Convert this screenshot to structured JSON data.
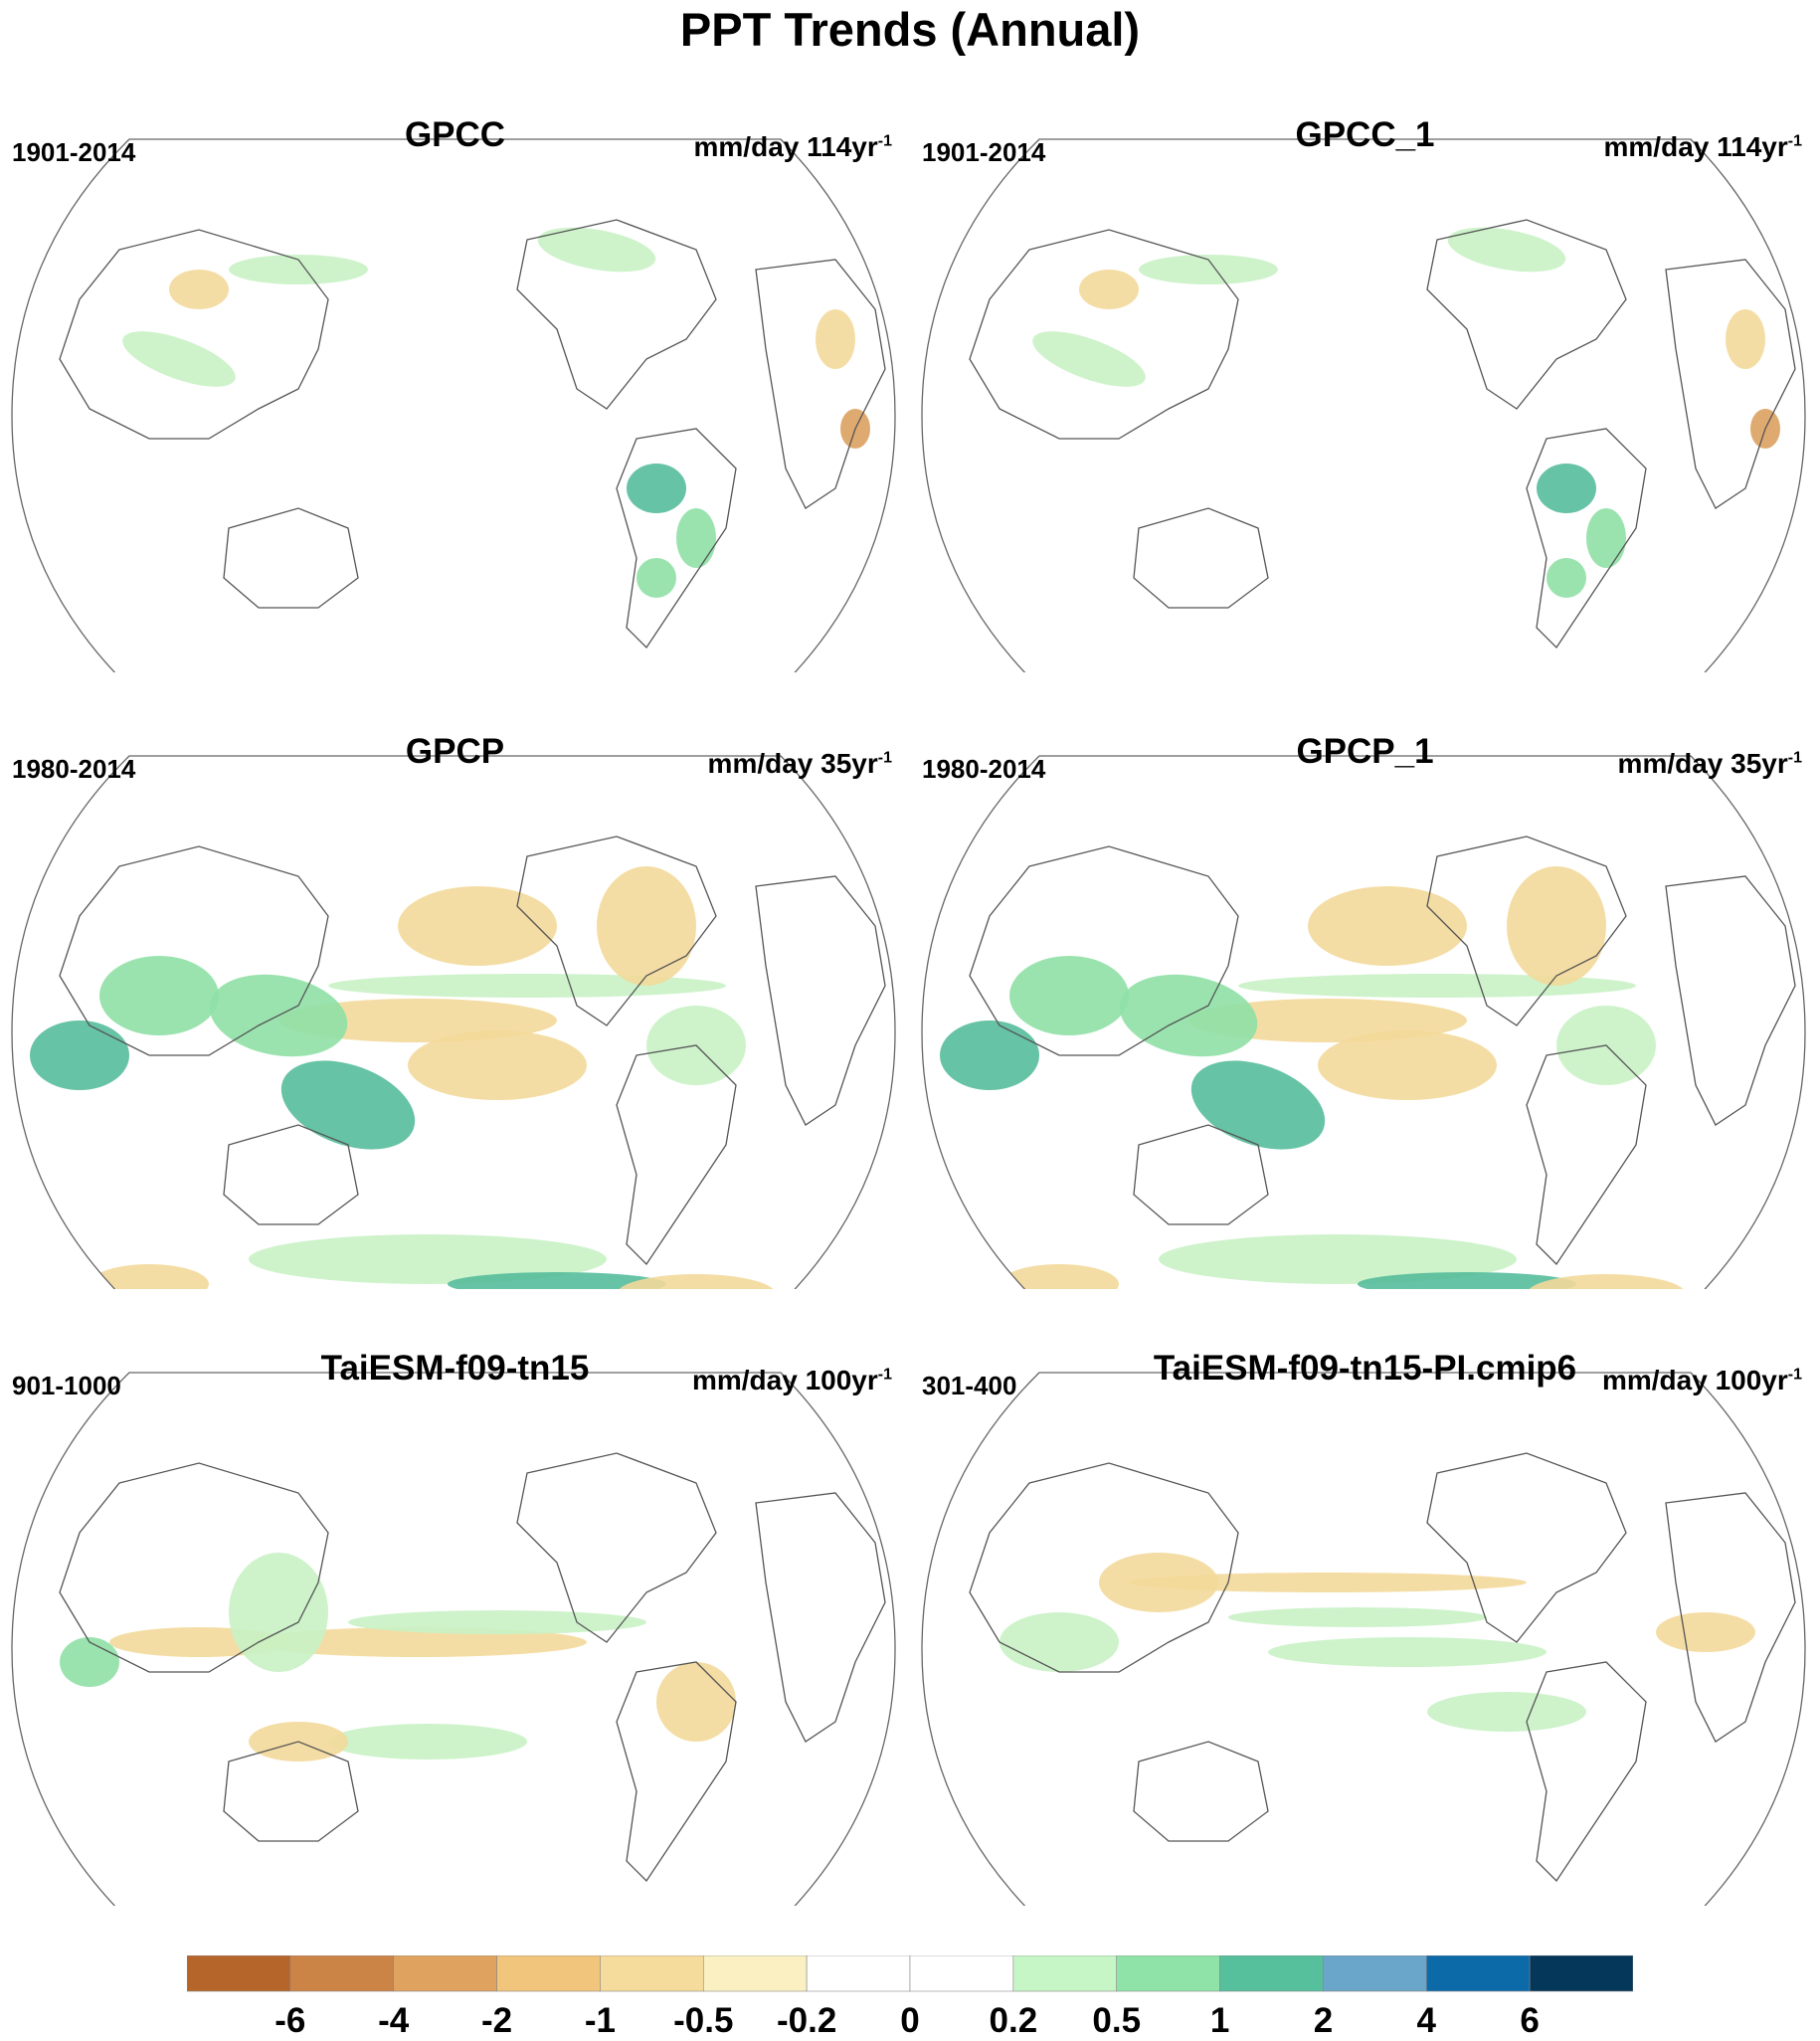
{
  "title": "PPT Trends (Annual)",
  "panels": [
    {
      "name": "GPCC",
      "period": "1901-2014",
      "units": "mm/day 114yr",
      "units_sup": "-1"
    },
    {
      "name": "GPCC_1",
      "period": "1901-2014",
      "units": "mm/day 114yr",
      "units_sup": "-1"
    },
    {
      "name": "GPCP",
      "period": "1980-2014",
      "units": "mm/day 35yr",
      "units_sup": "-1"
    },
    {
      "name": "GPCP_1",
      "period": "1980-2014",
      "units": "mm/day 35yr",
      "units_sup": "-1"
    },
    {
      "name": "TaiESM-f09-tn15",
      "period": "901-1000",
      "units": "mm/day 100yr",
      "units_sup": "-1"
    },
    {
      "name": "TaiESM-f09-tn15-PI.cmip6",
      "period": "301-400",
      "units": "mm/day 100yr",
      "units_sup": "-1"
    }
  ],
  "colorbar": {
    "labels": [
      "-6",
      "-4",
      "-2",
      "-1",
      "-0.5",
      "-0.2",
      "0",
      "0.2",
      "0.5",
      "1",
      "2",
      "4",
      "6"
    ],
    "colors": [
      "#b5652a",
      "#cc8446",
      "#dfa35f",
      "#f2c57c",
      "#f6dc9c",
      "#fbf0c2",
      "#ffffff",
      "#ffffff",
      "#c6f5c6",
      "#8fe3a8",
      "#56bf9c",
      "#6aa6c9",
      "#0d6aa8",
      "#04375a"
    ]
  },
  "palette": {
    "dry": "#f3d99a",
    "dry_strong": "#dba160",
    "wet": "#c9f2c5",
    "wet_mid": "#8fe0a6",
    "wet_strong": "#56bd9b",
    "coast": "#555555"
  }
}
